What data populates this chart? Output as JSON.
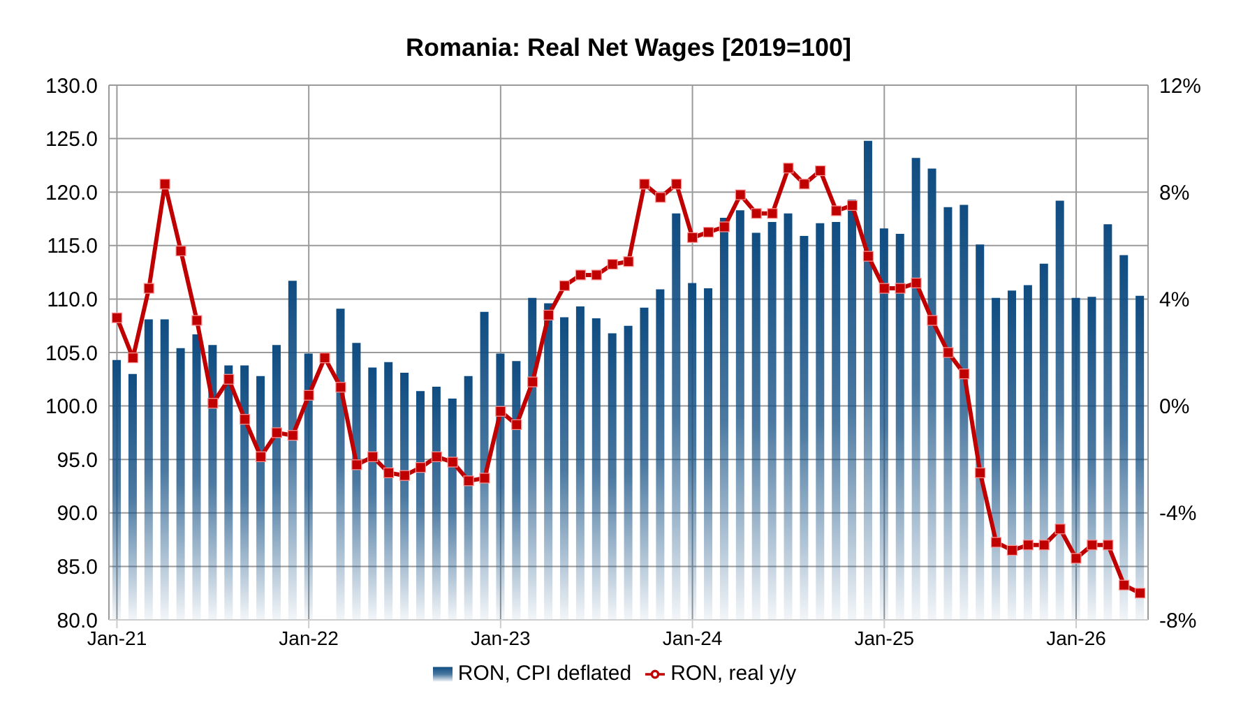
{
  "chart_data": {
    "type": "bar",
    "title": "Romania: Real Net Wages [2019=100]",
    "categories": [
      "Jan-21",
      null,
      null,
      null,
      null,
      null,
      null,
      null,
      null,
      null,
      null,
      null,
      "Jan-22",
      null,
      null,
      null,
      null,
      null,
      null,
      null,
      null,
      null,
      null,
      null,
      "Jan-23",
      null,
      null,
      null,
      null,
      null,
      null,
      null,
      null,
      null,
      null,
      null,
      "Jan-24",
      null,
      null,
      null,
      null,
      null,
      null,
      null,
      null,
      null,
      null,
      null,
      "Jan-25",
      null,
      null,
      null,
      null,
      null,
      null,
      null,
      null,
      null,
      null,
      null,
      "Jan-26",
      null,
      null,
      null,
      null
    ],
    "series": [
      {
        "name": "RON, CPI deflated",
        "color": "#0f4c81",
        "values": [
          104.3,
          103.0,
          108.1,
          108.1,
          105.4,
          106.7,
          105.7,
          103.8,
          103.8,
          102.8,
          105.7,
          111.7,
          104.9,
          null,
          109.1,
          105.9,
          103.6,
          104.1,
          103.1,
          101.4,
          101.8,
          100.7,
          102.8,
          108.8,
          104.9,
          104.2,
          110.1,
          109.6,
          108.3,
          109.3,
          108.2,
          106.8,
          107.5,
          109.2,
          110.9,
          118.0,
          111.5,
          111.0,
          117.6,
          118.3,
          116.2,
          117.2,
          118.0,
          115.9,
          117.1,
          117.2,
          119.3,
          124.8,
          116.6,
          116.1,
          123.2,
          122.2,
          118.6,
          118.8,
          115.1,
          110.1,
          110.8,
          111.3,
          113.3,
          119.2,
          110.1,
          110.2,
          117.0,
          114.1,
          110.3
        ]
      },
      {
        "name": "RON, real y/y",
        "type": "line",
        "axis": "y2",
        "color": "#c00000",
        "marker": "square",
        "values": [
          3.3,
          1.8,
          4.4,
          8.3,
          5.8,
          3.2,
          0.1,
          1.0,
          -0.5,
          -1.9,
          -1.0,
          -1.1,
          0.4,
          1.8,
          0.7,
          -2.2,
          -1.9,
          -2.5,
          -2.6,
          -2.3,
          -1.9,
          -2.1,
          -2.8,
          -2.7,
          -0.2,
          -0.7,
          0.9,
          3.4,
          4.5,
          4.9,
          4.9,
          5.3,
          5.4,
          8.3,
          7.8,
          8.3,
          6.3,
          6.5,
          6.7,
          7.9,
          7.2,
          7.2,
          8.9,
          8.3,
          8.8,
          7.3,
          7.5,
          5.6,
          4.4,
          4.4,
          4.6,
          3.2,
          2.0,
          1.2,
          -2.5,
          -5.1,
          -5.4,
          -5.2,
          -5.2,
          -4.6,
          -5.7,
          -5.2,
          -5.2,
          -6.7,
          -7.0
        ]
      }
    ],
    "ylim": [
      80,
      130
    ],
    "yticks": [
      {
        "value": 80,
        "label": "80.0"
      },
      {
        "value": 85,
        "label": "85.0"
      },
      {
        "value": 90,
        "label": "90.0"
      },
      {
        "value": 95,
        "label": "95.0"
      },
      {
        "value": 100,
        "label": "100.0"
      },
      {
        "value": 105,
        "label": "105.0"
      },
      {
        "value": 110,
        "label": "110.0"
      },
      {
        "value": 115,
        "label": "115.0"
      },
      {
        "value": 120,
        "label": "120.0"
      },
      {
        "value": 125,
        "label": "125.0"
      },
      {
        "value": 130,
        "label": "130.0"
      }
    ],
    "y2lim": [
      -8,
      12
    ],
    "y2ticks": [
      {
        "value": -8,
        "label": "-8%"
      },
      {
        "value": -4,
        "label": "-4%"
      },
      {
        "value": 0,
        "label": "0%"
      },
      {
        "value": 4,
        "label": "4%"
      },
      {
        "value": 8,
        "label": "8%"
      },
      {
        "value": 12,
        "label": "12%"
      }
    ],
    "grid": true,
    "legend": "bottom"
  }
}
